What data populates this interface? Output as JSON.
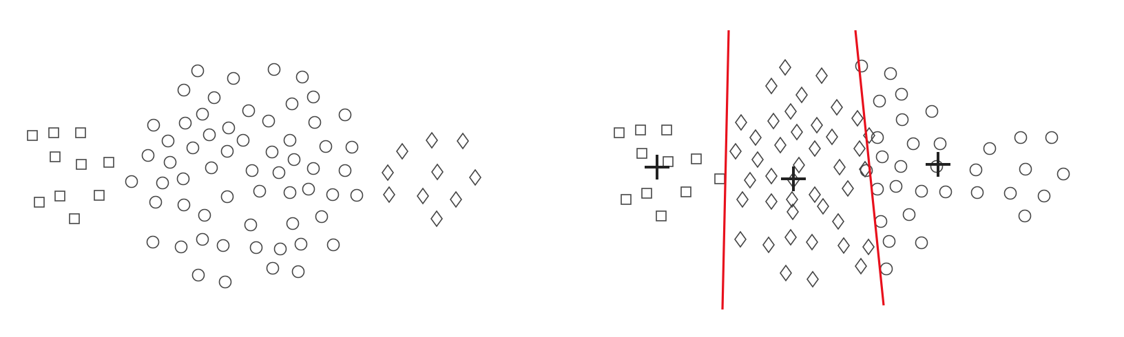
{
  "colors": {
    "marker_stroke": "#444444",
    "boundary_line": "#e8101c",
    "centroid_mark": "#222222",
    "background": "#ffffff"
  },
  "panels": [
    {
      "id": "left",
      "description_shapes": [
        "square",
        "circle",
        "diamond"
      ],
      "squares": 13,
      "circles": 60,
      "diamonds": 10
    },
    {
      "id": "right",
      "description_shapes": [
        "square",
        "diamond",
        "circle"
      ],
      "squares": 13,
      "diamonds": 42,
      "circles": 40,
      "boundary_lines": 2,
      "centroid_markers": 3
    }
  ]
}
